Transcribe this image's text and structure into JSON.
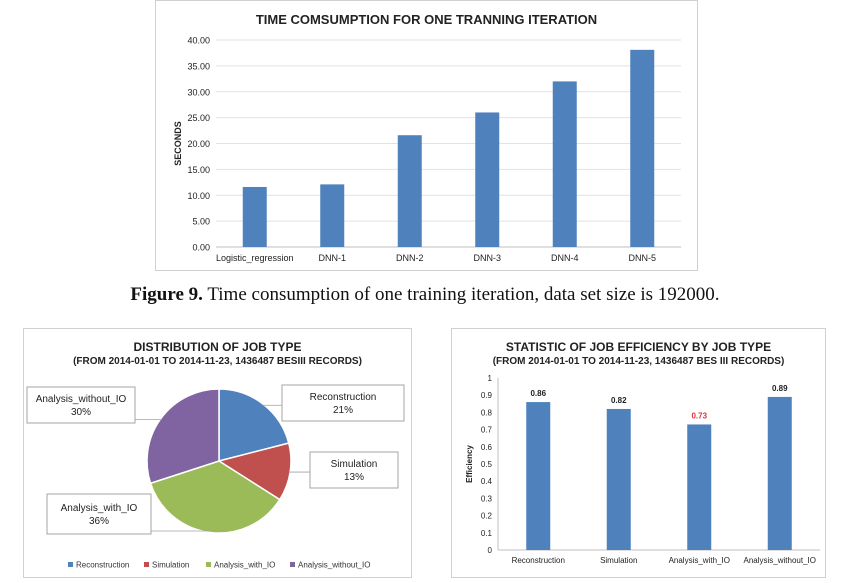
{
  "caption": {
    "label": "Figure 9.",
    "text": "Time consumption of one training iteration, data set size is 192000."
  },
  "chart_data": [
    {
      "type": "bar",
      "title": "TIME COMSUMPTION FOR ONE TRANNING ITERATION",
      "ylabel": "SECONDS",
      "categories": [
        "Logistic_regression",
        "DNN-1",
        "DNN-2",
        "DNN-3",
        "DNN-4",
        "DNN-5"
      ],
      "values": [
        11.6,
        12.1,
        21.6,
        26.0,
        32.0,
        38.1
      ],
      "ylim": [
        0,
        40
      ],
      "yticks": [
        "0.00",
        "5.00",
        "10.00",
        "15.00",
        "20.00",
        "25.00",
        "30.00",
        "35.00",
        "40.00"
      ],
      "grid": true,
      "color": "#4f81bd"
    },
    {
      "type": "pie",
      "title": "DISTRIBUTION OF JOB TYPE",
      "subtitle": "(FROM 2014-01-01 TO 2014-11-23,  1436487  BESIII RECORDS)",
      "slices": [
        {
          "name": "Reconstruction",
          "value": 21,
          "label": "21%",
          "color": "#4f81bd"
        },
        {
          "name": "Simulation",
          "value": 13,
          "label": "13%",
          "color": "#c0504d"
        },
        {
          "name": "Analysis_with_IO",
          "value": 36,
          "label": "36%",
          "color": "#9bbb59"
        },
        {
          "name": "Analysis_without_IO",
          "value": 30,
          "label": "30%",
          "color": "#8064a2"
        }
      ],
      "legend": "bottom"
    },
    {
      "type": "bar",
      "title": "STATISTIC OF JOB EFFICIENCY BY JOB TYPE",
      "subtitle": "(FROM 2014-01-01 TO 2014-11-23,  1436487  BES III RECORDS)",
      "ylabel": "Efficiency",
      "categories": [
        "Reconstruction",
        "Simulation",
        "Analysis_with_IO",
        "Analysis_without_IO"
      ],
      "values": [
        0.86,
        0.82,
        0.73,
        0.89
      ],
      "data_labels": [
        "0.86",
        "0.82",
        "0.73",
        "0.89"
      ],
      "highlight_label_index": 2,
      "highlight_color": "#e03030",
      "ylim": [
        0,
        1
      ],
      "yticks": [
        "0",
        "0.1",
        "0.2",
        "0.3",
        "0.4",
        "0.5",
        "0.6",
        "0.7",
        "0.8",
        "0.9",
        "1"
      ],
      "grid": false,
      "color": "#4f81bd"
    }
  ]
}
